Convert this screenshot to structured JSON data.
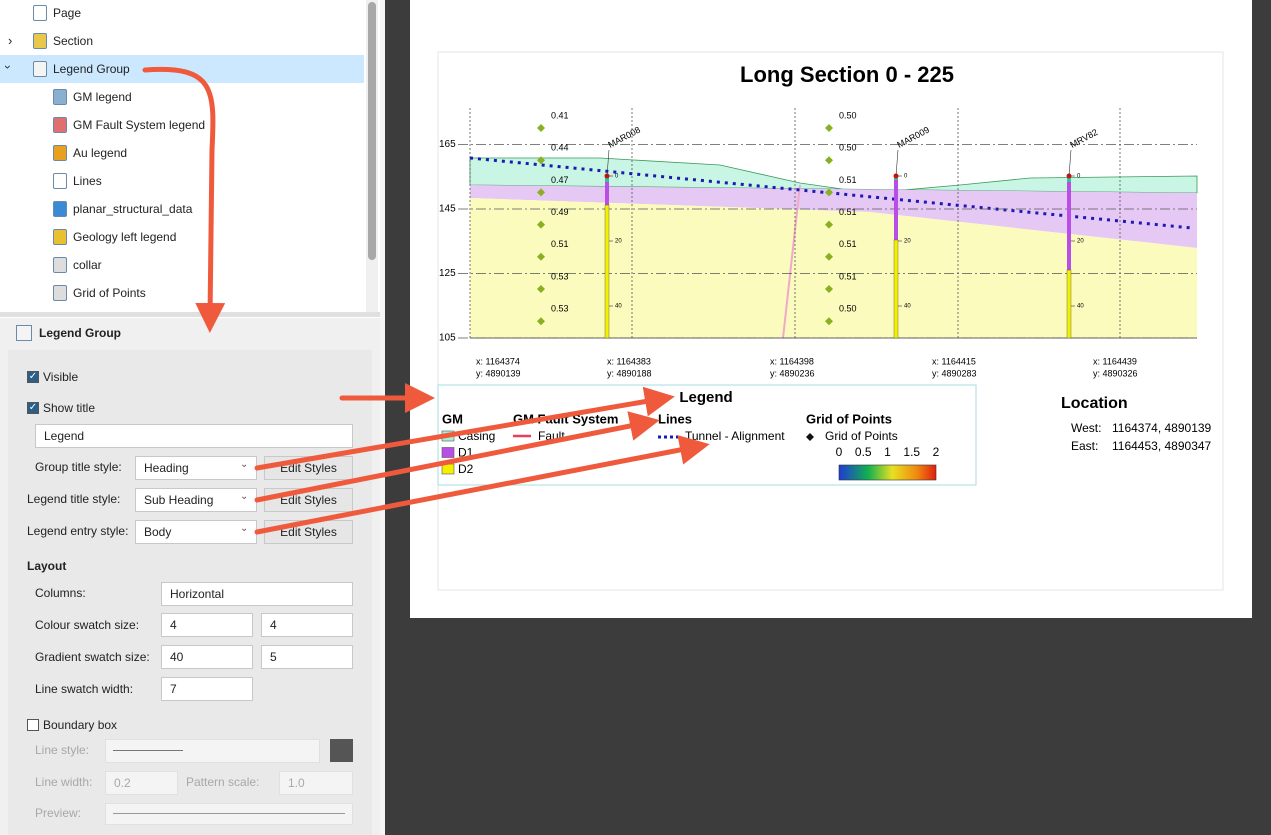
{
  "tree": {
    "items": [
      "Page",
      "Section",
      "Legend Group",
      "GM legend",
      "GM Fault System legend",
      "Au legend",
      "Lines",
      "planar_structural_data",
      "Geology left legend",
      "collar",
      "Grid of Points"
    ],
    "selected": 2
  },
  "properties": {
    "title": "Legend Group",
    "visible": {
      "label": "Visible",
      "checked": true
    },
    "show_title": {
      "label": "Show title",
      "checked": true
    },
    "title_text": "Legend",
    "styles": [
      {
        "label": "Group title style:",
        "value": "Heading",
        "button": "Edit Styles"
      },
      {
        "label": "Legend title style:",
        "value": "Sub Heading",
        "button": "Edit Styles"
      },
      {
        "label": "Legend entry style:",
        "value": "Body",
        "button": "Edit Styles"
      }
    ],
    "layout": {
      "heading": "Layout",
      "columns": {
        "label": "Columns:",
        "value": "Horizontal"
      },
      "colour_swatch": {
        "label": "Colour swatch size:",
        "values": [
          4,
          4
        ]
      },
      "gradient_swatch": {
        "label": "Gradient swatch size:",
        "values": [
          40,
          5
        ]
      },
      "line_swatch": {
        "label": "Line swatch width:",
        "values": [
          7
        ]
      }
    },
    "boundary_box": {
      "label": "Boundary box",
      "checked": false,
      "line_style": "Line style:",
      "line_width": {
        "label": "Line width:",
        "value": "0.2"
      },
      "pattern_scale": {
        "label": "Pattern scale:",
        "value": "1.0"
      },
      "preview": "Preview:"
    }
  },
  "section": {
    "title": "Long Section 0 - 225",
    "elevations": [
      165,
      145,
      125,
      105
    ],
    "coordinates": [
      {
        "x": "x: 1164374",
        "y": "y: 4890139"
      },
      {
        "x": "x: 1164383",
        "y": "y: 4890188"
      },
      {
        "x": "x: 1164398",
        "y": "y: 4890236"
      },
      {
        "x": "x: 1164415",
        "y": "y: 4890283"
      },
      {
        "x": "x: 1164439",
        "y": "y: 4890326"
      }
    ],
    "point_columns": [
      [
        "0.41",
        "0.44",
        "0.47",
        "0.49",
        "0.51",
        "0.53",
        "0.53"
      ],
      [
        "0.50",
        "0.50",
        "0.51",
        "0.51",
        "0.51",
        "0.51",
        "0.50"
      ]
    ],
    "holes": [
      "MAR008",
      "MAR009",
      "MRV82"
    ],
    "depths": [
      0,
      20,
      40
    ]
  },
  "legend": {
    "title": "Legend",
    "gm": {
      "title": "GM",
      "entries": [
        {
          "label": "Casing",
          "color": "#a6f0d6"
        },
        {
          "label": "D1",
          "color": "#b94ee6"
        },
        {
          "label": "D2",
          "color": "#f2f000"
        }
      ]
    },
    "fault": {
      "title": "GM Fault System",
      "label": "Fault",
      "color": "#e8405a"
    },
    "lines": {
      "title": "Lines",
      "label": "Tunnel - Alignment",
      "color": "#1a1ab4"
    },
    "grid": {
      "title": "Grid of Points",
      "label": "Grid of Points",
      "ticks": [
        0,
        0.5,
        1,
        1.5,
        2
      ]
    }
  },
  "location": {
    "title": "Location",
    "rows": [
      {
        "label": "West:",
        "value": "1164374, 4890139"
      },
      {
        "label": "East:",
        "value": "1164453, 4890347"
      }
    ]
  }
}
